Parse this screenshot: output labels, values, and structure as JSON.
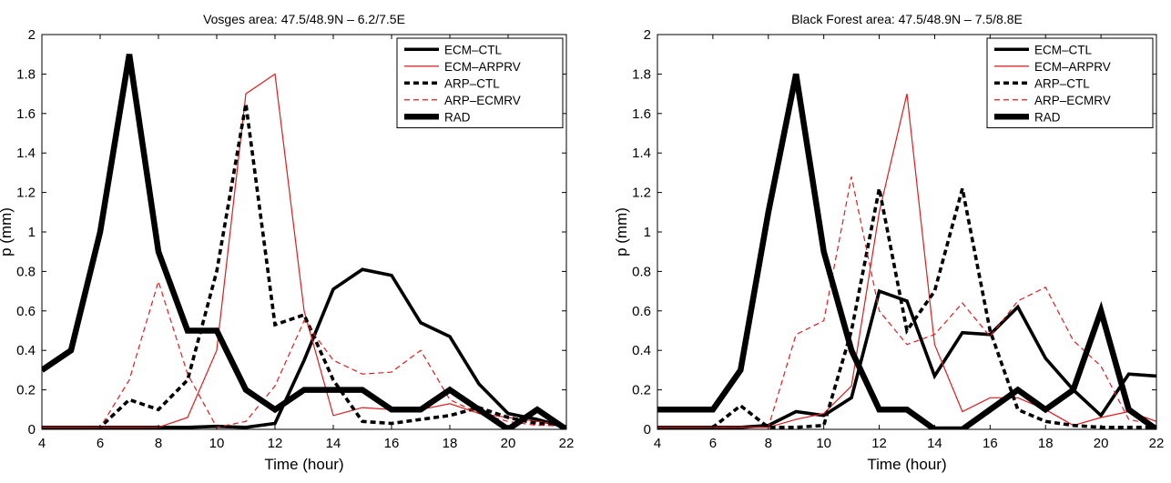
{
  "chart_data": [
    {
      "type": "line",
      "title": "Vosges area: 47.5/48.9N – 6.2/7.5E",
      "xlabel": "Time (hour)",
      "ylabel": "p (mm)",
      "xlim": [
        4,
        22
      ],
      "ylim": [
        0,
        2
      ],
      "xticks": [
        "4",
        "6",
        "8",
        "10",
        "12",
        "14",
        "16",
        "18",
        "20",
        "22"
      ],
      "yticks": [
        "0",
        "0.2",
        "0.4",
        "0.6",
        "0.8",
        "1",
        "1.2",
        "1.4",
        "1.6",
        "1.8",
        "2"
      ],
      "legend_position": "top-right",
      "x": [
        4,
        5,
        6,
        7,
        8,
        9,
        10,
        11,
        12,
        13,
        14,
        15,
        16,
        17,
        18,
        19,
        20,
        21,
        22
      ],
      "series": [
        {
          "name": "ECM–CTL",
          "color": "#000000",
          "style": "solid",
          "width": "medium",
          "values": [
            0.01,
            0.01,
            0.01,
            0.01,
            0.01,
            0.01,
            0.015,
            0.01,
            0.03,
            0.35,
            0.71,
            0.81,
            0.78,
            0.54,
            0.47,
            0.23,
            0.08,
            0.05,
            0.01
          ]
        },
        {
          "name": "ECM–ARPRV",
          "color": "#e41a1c",
          "style": "solid",
          "width": "thin",
          "values": [
            0.01,
            0.01,
            0.01,
            0.01,
            0.01,
            0.06,
            0.4,
            1.7,
            1.8,
            0.6,
            0.07,
            0.11,
            0.1,
            0.1,
            0.13,
            0.08,
            0.06,
            0.04,
            0.02
          ]
        },
        {
          "name": "ARP–CTL",
          "color": "#000000",
          "style": "dashed",
          "width": "medium",
          "values": [
            0.01,
            0.01,
            0.01,
            0.15,
            0.1,
            0.25,
            0.8,
            1.65,
            0.53,
            0.58,
            0.25,
            0.04,
            0.03,
            0.05,
            0.07,
            0.11,
            0.06,
            0.03,
            0.02
          ]
        },
        {
          "name": "ARP–ECMRV",
          "color": "#e41a1c",
          "style": "dashed",
          "width": "thin",
          "values": [
            0.01,
            0.01,
            0.01,
            0.25,
            0.75,
            0.28,
            0.01,
            0.04,
            0.22,
            0.55,
            0.35,
            0.28,
            0.29,
            0.4,
            0.15,
            0.08,
            0.04,
            0.02,
            0.02
          ]
        },
        {
          "name": "RAD",
          "color": "#000000",
          "style": "solid",
          "width": "thick",
          "values": [
            0.3,
            0.4,
            1.0,
            1.9,
            0.9,
            0.5,
            0.5,
            0.2,
            0.1,
            0.2,
            0.2,
            0.2,
            0.1,
            0.1,
            0.2,
            0.1,
            0.0,
            0.1,
            0.0
          ]
        }
      ]
    },
    {
      "type": "line",
      "title": "Black Forest area: 47.5/48.9N – 7.5/8.8E",
      "xlabel": "Time (hour)",
      "ylabel": "p (mm)",
      "xlim": [
        4,
        22
      ],
      "ylim": [
        0,
        2
      ],
      "xticks": [
        "4",
        "6",
        "8",
        "10",
        "12",
        "14",
        "16",
        "18",
        "20",
        "22"
      ],
      "yticks": [
        "0",
        "0.2",
        "0.4",
        "0.6",
        "0.8",
        "1",
        "1.2",
        "1.4",
        "1.6",
        "1.8",
        "2"
      ],
      "legend_position": "top-right",
      "x": [
        4,
        5,
        6,
        7,
        8,
        9,
        10,
        11,
        12,
        13,
        14,
        15,
        16,
        17,
        18,
        19,
        20,
        21,
        22
      ],
      "series": [
        {
          "name": "ECM–CTL",
          "color": "#000000",
          "style": "solid",
          "width": "medium",
          "values": [
            0.01,
            0.01,
            0.01,
            0.01,
            0.02,
            0.09,
            0.07,
            0.16,
            0.7,
            0.65,
            0.27,
            0.49,
            0.48,
            0.62,
            0.36,
            0.2,
            0.07,
            0.28,
            0.27
          ]
        },
        {
          "name": "ECM–ARPRV",
          "color": "#e41a1c",
          "style": "solid",
          "width": "thin",
          "values": [
            0.01,
            0.01,
            0.01,
            0.01,
            0.01,
            0.05,
            0.08,
            0.22,
            1.1,
            1.7,
            0.43,
            0.09,
            0.16,
            0.16,
            0.1,
            0.02,
            0.06,
            0.09,
            0.04
          ]
        },
        {
          "name": "ARP–CTL",
          "color": "#000000",
          "style": "dashed",
          "width": "medium",
          "values": [
            0.01,
            0.01,
            0.01,
            0.12,
            0.01,
            0.01,
            0.02,
            0.5,
            1.22,
            0.5,
            0.7,
            1.22,
            0.5,
            0.1,
            0.04,
            0.02,
            0.01,
            0.01,
            0.01
          ]
        },
        {
          "name": "ARP–ECMRV",
          "color": "#e41a1c",
          "style": "dashed",
          "width": "thin",
          "values": [
            0.01,
            0.01,
            0.01,
            0.01,
            0.01,
            0.48,
            0.55,
            1.28,
            0.6,
            0.43,
            0.48,
            0.64,
            0.47,
            0.65,
            0.72,
            0.45,
            0.32,
            0.05,
            0.02
          ]
        },
        {
          "name": "RAD",
          "color": "#000000",
          "style": "solid",
          "width": "thick",
          "values": [
            0.1,
            0.1,
            0.1,
            0.3,
            1.1,
            1.8,
            0.9,
            0.4,
            0.1,
            0.1,
            0.0,
            0.0,
            0.1,
            0.2,
            0.1,
            0.2,
            0.6,
            0.1,
            0.0
          ]
        }
      ]
    }
  ]
}
